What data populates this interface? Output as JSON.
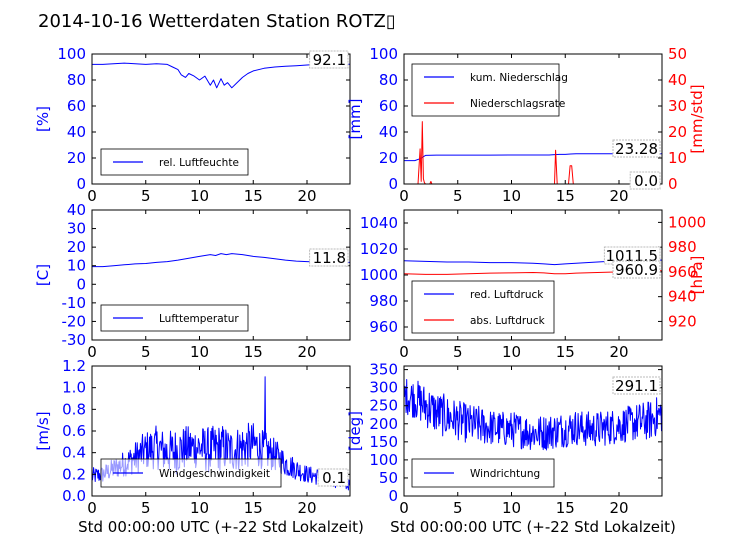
{
  "title": "2014-10-16 Wetterdaten Station ROTZ▯",
  "colors": {
    "primary": "#0000ff",
    "secondary": "#ff0000",
    "axis": "#000000",
    "background": "#ffffff"
  },
  "chart_data": [
    {
      "id": "humidity",
      "type": "line",
      "xlim": [
        0,
        24
      ],
      "xticks": [
        0,
        5,
        10,
        15,
        20
      ],
      "ylim": [
        0,
        100
      ],
      "yticks": [
        0,
        20,
        40,
        60,
        80,
        100
      ],
      "ylabel": "[%]",
      "value_label": "92.1",
      "legend": {
        "position": "lower-left"
      },
      "series": [
        {
          "name": "rel. Luftfeuchte",
          "color": "#0000ff",
          "axis": "left",
          "x": [
            0,
            1,
            2,
            3,
            4,
            5,
            6,
            7,
            7.5,
            8,
            8.3,
            8.7,
            9,
            9.5,
            10,
            10.5,
            11,
            11.3,
            11.6,
            12,
            12.3,
            12.6,
            13,
            13.5,
            14,
            14.5,
            15,
            16,
            17,
            18,
            19,
            20,
            21,
            22,
            23,
            24
          ],
          "y": [
            92,
            92,
            92.5,
            93,
            92.5,
            92,
            92.5,
            92,
            90,
            88,
            84,
            82,
            85,
            83,
            80,
            83,
            76,
            80,
            74,
            81,
            76,
            78,
            74,
            78,
            82,
            85,
            87,
            89,
            90,
            90.5,
            91,
            91.5,
            92,
            92,
            92.3,
            92.1
          ]
        }
      ]
    },
    {
      "id": "precipitation",
      "type": "line",
      "xlim": [
        0,
        24
      ],
      "xticks": [
        0,
        5,
        10,
        15,
        20
      ],
      "ylim": [
        0,
        100
      ],
      "yticks": [
        0,
        20,
        40,
        60,
        80,
        100
      ],
      "ylabel": "[mm]",
      "y2lim": [
        0,
        50
      ],
      "y2ticks": [
        0,
        10,
        20,
        30,
        40,
        50
      ],
      "y2label": "[mm/std]",
      "value_label": "23.28",
      "value_label2": "0.0",
      "legend": {
        "position": "upper-left"
      },
      "series": [
        {
          "name": "kum. Niederschlag",
          "color": "#0000ff",
          "axis": "left",
          "x": [
            0,
            1,
            1.5,
            2,
            3,
            5,
            8,
            10,
            12,
            13.5,
            14,
            14.5,
            15,
            15.5,
            16,
            18,
            20,
            22,
            24
          ],
          "y": [
            18,
            18,
            19.5,
            22,
            22.2,
            22.2,
            22.2,
            22.3,
            22.3,
            22.3,
            22.6,
            22.8,
            22.8,
            23.1,
            23.2,
            23.25,
            23.28,
            23.28,
            23.28
          ]
        },
        {
          "name": "Niederschlagsrate",
          "color": "#ff0000",
          "axis": "right",
          "x": [
            0,
            1.3,
            1.5,
            1.6,
            1.7,
            1.8,
            1.9,
            2.0,
            2.1,
            2.4,
            2.5,
            2.6,
            13.8,
            14.0,
            14.1,
            14.25,
            14.4,
            15.3,
            15.45,
            15.6,
            15.75,
            24
          ],
          "y": [
            0,
            0,
            13.5,
            1,
            24,
            2,
            0.5,
            0,
            0,
            0,
            1,
            0,
            0,
            0,
            13,
            0,
            0,
            0,
            7,
            7,
            0,
            0
          ]
        }
      ]
    },
    {
      "id": "temperature",
      "type": "line",
      "xlim": [
        0,
        24
      ],
      "xticks": [
        0,
        5,
        10,
        15,
        20
      ],
      "ylim": [
        -30,
        40
      ],
      "yticks": [
        -30,
        -20,
        -10,
        0,
        10,
        20,
        30,
        40
      ],
      "ylabel": "[C]",
      "value_label": "11.8",
      "legend": {
        "position": "lower-left"
      },
      "series": [
        {
          "name": "Lufttemperatur",
          "color": "#0000ff",
          "axis": "left",
          "x": [
            0,
            1,
            2,
            3,
            4,
            5,
            6,
            7,
            8,
            9,
            10,
            10.5,
            11,
            11.5,
            12,
            12.5,
            13,
            14,
            15,
            16,
            17,
            18,
            19,
            20,
            21,
            22,
            23,
            24
          ],
          "y": [
            9.5,
            9.5,
            10,
            10.5,
            11,
            11.2,
            11.8,
            12.2,
            13,
            14,
            15,
            15.5,
            16,
            15.5,
            16.5,
            16,
            16.5,
            16,
            15,
            14.5,
            13.8,
            13,
            12.5,
            12.2,
            12,
            11.8,
            11.8,
            11.8
          ]
        }
      ]
    },
    {
      "id": "pressure",
      "type": "line",
      "xlim": [
        0,
        24
      ],
      "xticks": [
        0,
        5,
        10,
        15,
        20
      ],
      "ylim": [
        950,
        1050
      ],
      "yticks": [
        960,
        980,
        1000,
        1020,
        1040
      ],
      "y2lim": [
        905,
        1010
      ],
      "y2ticks": [
        920,
        940,
        960,
        980,
        1000
      ],
      "y2label": "[hPa]",
      "value_label": "1011.5",
      "value_label2": "960.9",
      "legend": {
        "position": "lower-left"
      },
      "series": [
        {
          "name": "red. Luftdruck",
          "color": "#0000ff",
          "axis": "left",
          "x": [
            0,
            2,
            4,
            6,
            8,
            10,
            12,
            13,
            14,
            15,
            16,
            18,
            20,
            22,
            24
          ],
          "y": [
            1011,
            1010.5,
            1010,
            1010,
            1009.5,
            1009.5,
            1009,
            1008.5,
            1008,
            1008.5,
            1009,
            1010,
            1011,
            1011.5,
            1011.5
          ]
        },
        {
          "name": "abs. Luftdruck",
          "color": "#ff0000",
          "axis": "right",
          "x": [
            0,
            2,
            4,
            6,
            8,
            10,
            12,
            13,
            14,
            15,
            16,
            18,
            20,
            22,
            24
          ],
          "y": [
            958.5,
            958,
            958,
            958.5,
            959,
            959.2,
            959.5,
            959.2,
            958.5,
            958.5,
            959,
            959.5,
            960,
            960.5,
            960.9
          ]
        }
      ]
    },
    {
      "id": "windspeed",
      "type": "line",
      "xlim": [
        0,
        24
      ],
      "xticks": [
        0,
        5,
        10,
        15,
        20
      ],
      "ylim": [
        0,
        1.2
      ],
      "yticks": [
        0.0,
        0.2,
        0.4,
        0.6,
        0.8,
        1.0,
        1.2
      ],
      "ylabel": "[m/s]",
      "xlabel": "Std 00:00:00 UTC (+-22 Std Lokalzeit)",
      "value_label": "0.1",
      "legend": {
        "position": "lower-center"
      },
      "series": [
        {
          "name": "Windgeschwindigkeit",
          "color": "#0000ff",
          "axis": "left",
          "noise": [
            0.08,
            0.08,
            0.1,
            0.12,
            0.15,
            0.18,
            0.2,
            0.2,
            0.22,
            0.2,
            0.2,
            0.22,
            0.22,
            0.2,
            0.22,
            0.2,
            0.18,
            0.15,
            0.12,
            0.1,
            0.08,
            0.08,
            0.06,
            0.05,
            0.05
          ],
          "x": [
            0,
            1,
            2,
            3,
            4,
            5,
            6,
            7,
            8,
            9,
            10,
            11,
            12,
            13,
            14,
            15,
            16,
            17,
            18,
            19,
            20,
            21,
            22,
            23,
            24
          ],
          "y": [
            0.18,
            0.2,
            0.25,
            0.3,
            0.35,
            0.42,
            0.45,
            0.4,
            0.42,
            0.45,
            0.45,
            0.42,
            0.45,
            0.42,
            0.45,
            0.48,
            0.42,
            0.38,
            0.3,
            0.25,
            0.2,
            0.18,
            0.15,
            0.12,
            0.1
          ]
        }
      ]
    },
    {
      "id": "winddirection",
      "type": "line",
      "xlim": [
        0,
        24
      ],
      "xticks": [
        0,
        5,
        10,
        15,
        20
      ],
      "ylim": [
        0,
        360
      ],
      "yticks": [
        0,
        50,
        100,
        150,
        200,
        250,
        300,
        350
      ],
      "ylabel": "[deg]",
      "xlabel": "Std 00:00:00 UTC (+-22 Std Lokalzeit)",
      "value_label": "291.1",
      "legend": {
        "position": "lower-left"
      },
      "series": [
        {
          "name": "Windrichtung",
          "color": "#0000ff",
          "axis": "left",
          "noise": [
            50,
            55,
            60,
            60,
            60,
            55,
            55,
            55,
            50,
            50,
            50,
            50,
            50,
            50,
            50,
            50,
            50,
            50,
            50,
            50,
            50,
            50,
            55,
            55,
            55
          ],
          "x": [
            0,
            1,
            2,
            3,
            4,
            5,
            6,
            7,
            8,
            9,
            10,
            11,
            12,
            13,
            14,
            15,
            16,
            17,
            18,
            19,
            20,
            21,
            22,
            23,
            24
          ],
          "y": [
            280,
            270,
            250,
            230,
            220,
            210,
            200,
            195,
            190,
            185,
            185,
            180,
            175,
            175,
            180,
            185,
            190,
            185,
            185,
            190,
            195,
            200,
            205,
            210,
            230
          ]
        }
      ]
    }
  ]
}
